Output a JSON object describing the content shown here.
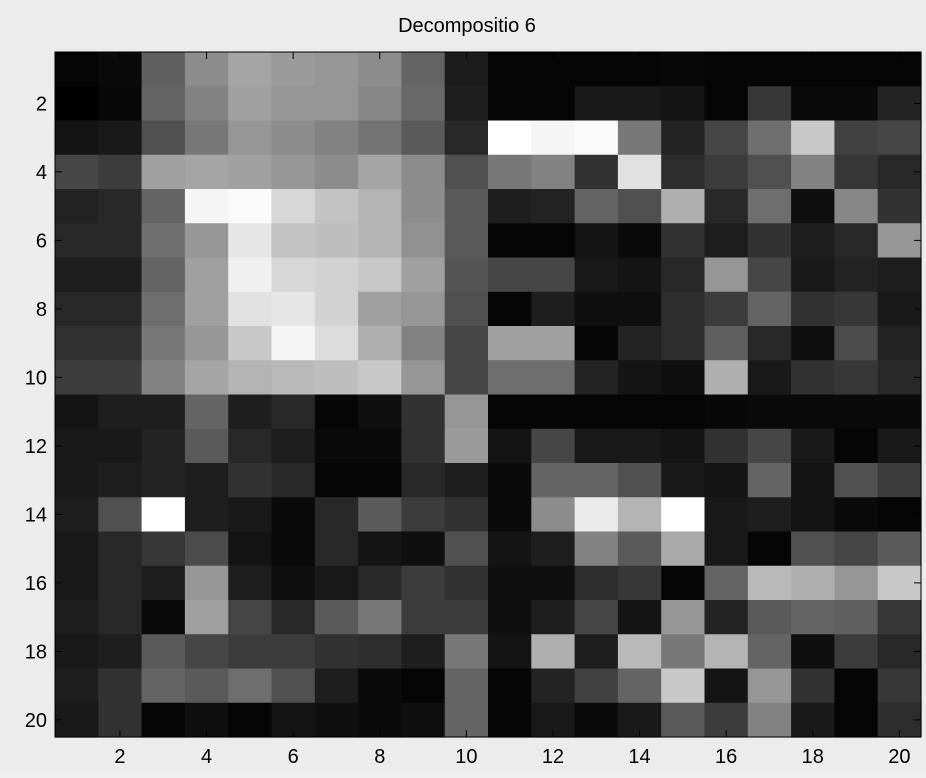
{
  "chart_data": {
    "type": "heatmap",
    "title": "Decompositio 6",
    "colormap": "gray",
    "value_range": [
      0,
      255
    ],
    "xlim": [
      0.5,
      20.5
    ],
    "ylim": [
      0.5,
      20.5
    ],
    "y_direction": "reversed",
    "xticks": [
      2,
      4,
      6,
      8,
      10,
      12,
      14,
      16,
      18,
      20
    ],
    "yticks": [
      2,
      4,
      6,
      8,
      10,
      12,
      14,
      16,
      18,
      20
    ],
    "xtick_labels": [
      "2",
      "4",
      "6",
      "8",
      "10",
      "12",
      "14",
      "16",
      "18",
      "20"
    ],
    "ytick_labels": [
      "2",
      "4",
      "6",
      "8",
      "10",
      "12",
      "14",
      "16",
      "18",
      "20"
    ],
    "grid": false,
    "legend": "none",
    "values": [
      [
        5,
        10,
        95,
        140,
        165,
        155,
        150,
        140,
        100,
        28,
        5,
        5,
        5,
        5,
        8,
        5,
        5,
        5,
        5,
        5
      ],
      [
        0,
        8,
        100,
        130,
        160,
        150,
        150,
        135,
        105,
        30,
        5,
        5,
        25,
        25,
        20,
        5,
        55,
        10,
        10,
        35
      ],
      [
        20,
        25,
        80,
        120,
        150,
        140,
        130,
        115,
        90,
        40,
        255,
        245,
        250,
        120,
        35,
        70,
        110,
        200,
        65,
        70
      ],
      [
        70,
        60,
        160,
        165,
        160,
        150,
        140,
        165,
        140,
        80,
        120,
        130,
        50,
        225,
        45,
        60,
        80,
        130,
        55,
        40
      ],
      [
        35,
        40,
        100,
        245,
        250,
        215,
        195,
        180,
        140,
        90,
        30,
        35,
        100,
        80,
        175,
        40,
        110,
        15,
        135,
        50
      ],
      [
        40,
        40,
        110,
        150,
        230,
        195,
        190,
        180,
        145,
        90,
        5,
        5,
        20,
        10,
        50,
        30,
        50,
        30,
        40,
        150
      ],
      [
        30,
        30,
        100,
        160,
        240,
        215,
        210,
        200,
        160,
        85,
        70,
        70,
        25,
        20,
        40,
        150,
        70,
        25,
        35,
        30
      ],
      [
        40,
        40,
        110,
        160,
        225,
        230,
        210,
        160,
        150,
        80,
        5,
        30,
        15,
        15,
        45,
        60,
        100,
        50,
        55,
        25
      ],
      [
        50,
        50,
        120,
        150,
        200,
        245,
        220,
        175,
        130,
        70,
        160,
        160,
        5,
        35,
        45,
        95,
        40,
        15,
        75,
        35
      ],
      [
        60,
        60,
        130,
        165,
        180,
        185,
        190,
        200,
        150,
        70,
        110,
        110,
        35,
        20,
        15,
        175,
        25,
        50,
        55,
        40
      ],
      [
        20,
        30,
        30,
        100,
        30,
        40,
        5,
        15,
        50,
        150,
        5,
        5,
        5,
        5,
        5,
        8,
        10,
        10,
        10,
        10
      ],
      [
        25,
        25,
        35,
        90,
        40,
        30,
        10,
        10,
        50,
        155,
        20,
        70,
        25,
        25,
        20,
        50,
        70,
        25,
        5,
        25
      ],
      [
        25,
        30,
        35,
        30,
        50,
        40,
        5,
        5,
        40,
        30,
        10,
        100,
        100,
        80,
        25,
        20,
        100,
        20,
        80,
        60
      ],
      [
        30,
        80,
        255,
        30,
        25,
        10,
        40,
        90,
        60,
        50,
        10,
        140,
        235,
        180,
        255,
        25,
        30,
        20,
        10,
        5
      ],
      [
        25,
        40,
        55,
        75,
        20,
        10,
        40,
        20,
        15,
        80,
        20,
        30,
        130,
        90,
        170,
        25,
        5,
        80,
        70,
        90
      ],
      [
        25,
        40,
        30,
        150,
        30,
        15,
        25,
        40,
        60,
        50,
        15,
        15,
        45,
        55,
        5,
        100,
        185,
        175,
        150,
        200
      ],
      [
        30,
        40,
        10,
        160,
        70,
        40,
        90,
        120,
        60,
        60,
        15,
        30,
        70,
        20,
        150,
        35,
        90,
        100,
        95,
        55
      ],
      [
        25,
        30,
        90,
        70,
        60,
        60,
        50,
        45,
        30,
        120,
        20,
        175,
        30,
        185,
        120,
        180,
        100,
        15,
        60,
        40
      ],
      [
        30,
        50,
        100,
        90,
        110,
        80,
        30,
        10,
        5,
        100,
        5,
        35,
        65,
        100,
        200,
        20,
        150,
        50,
        5,
        55
      ],
      [
        25,
        50,
        5,
        15,
        5,
        20,
        15,
        10,
        15,
        100,
        5,
        25,
        10,
        25,
        90,
        60,
        130,
        25,
        5,
        45
      ]
    ]
  }
}
